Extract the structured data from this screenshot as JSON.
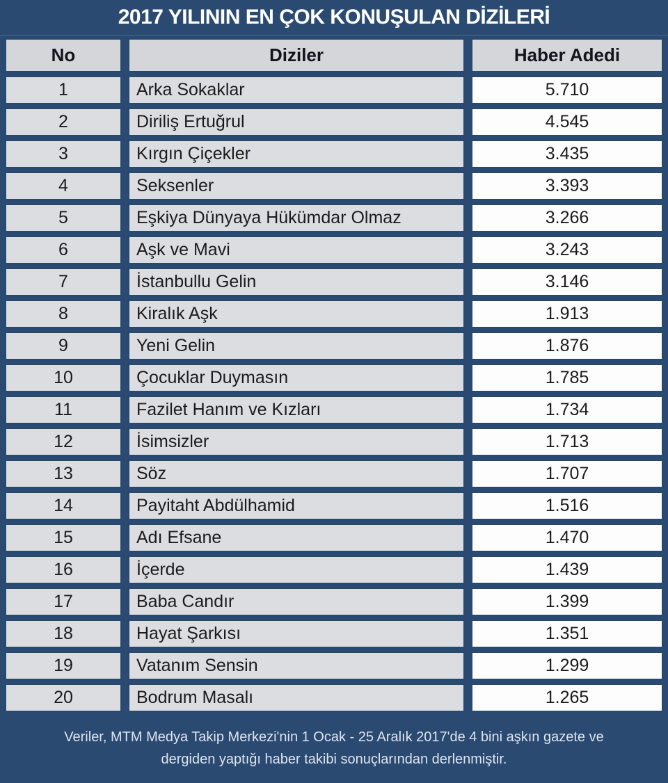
{
  "title": "2017 YILININ EN ÇOK KONUŞULAN DİZİLERİ",
  "chart_data": {
    "type": "table",
    "title": "2017 YILININ EN ÇOK KONUŞULAN DİZİLERİ",
    "columns": [
      "No",
      "Diziler",
      "Haber Adedi"
    ],
    "rows": [
      {
        "no": "1",
        "dizi": "Arka Sokaklar",
        "haber_adedi": "5.710"
      },
      {
        "no": "2",
        "dizi": "Diriliş Ertuğrul",
        "haber_adedi": "4.545"
      },
      {
        "no": "3",
        "dizi": "Kırgın Çiçekler",
        "haber_adedi": "3.435"
      },
      {
        "no": "4",
        "dizi": "Seksenler",
        "haber_adedi": "3.393"
      },
      {
        "no": "5",
        "dizi": "Eşkiya Dünyaya Hükümdar Olmaz",
        "haber_adedi": "3.266"
      },
      {
        "no": "6",
        "dizi": "Aşk ve Mavi",
        "haber_adedi": "3.243"
      },
      {
        "no": "7",
        "dizi": "İstanbullu Gelin",
        "haber_adedi": "3.146"
      },
      {
        "no": "8",
        "dizi": "Kiralık Aşk",
        "haber_adedi": "1.913"
      },
      {
        "no": "9",
        "dizi": "Yeni Gelin",
        "haber_adedi": "1.876"
      },
      {
        "no": "10",
        "dizi": "Çocuklar Duymasın",
        "haber_adedi": "1.785"
      },
      {
        "no": "11",
        "dizi": "Fazilet Hanım ve Kızları",
        "haber_adedi": "1.734"
      },
      {
        "no": "12",
        "dizi": "İsimsizler",
        "haber_adedi": "1.713"
      },
      {
        "no": "13",
        "dizi": "Söz",
        "haber_adedi": "1.707"
      },
      {
        "no": "14",
        "dizi": "Payitaht Abdülhamid",
        "haber_adedi": "1.516"
      },
      {
        "no": "15",
        "dizi": "Adı Efsane",
        "haber_adedi": "1.470"
      },
      {
        "no": "16",
        "dizi": "İçerde",
        "haber_adedi": "1.439"
      },
      {
        "no": "17",
        "dizi": "Baba Candır",
        "haber_adedi": "1.399"
      },
      {
        "no": "18",
        "dizi": "Hayat Şarkısı",
        "haber_adedi": "1.351"
      },
      {
        "no": "19",
        "dizi": "Vatanım Sensin",
        "haber_adedi": "1.299"
      },
      {
        "no": "20",
        "dizi": "Bodrum Masalı",
        "haber_adedi": "1.265"
      }
    ]
  },
  "footer": {
    "lines": [
      "Veriler, MTM Medya Takip Merkezi'nin 1 Ocak - 25 Aralık 2017'de 4 bini aşkın gazete ve",
      "dergiden yaptığı haber takibi sonuçlarından derlenmiştir."
    ]
  },
  "colors": {
    "background_navy": "#2b4a72",
    "cell_border": "#28496f",
    "header_cell_gray": "#d4d6d9",
    "data_cell_gray": "#dbdde0",
    "count_cell_white": "#fdfdfe",
    "title_text": "#ffffff",
    "data_text": "#1b1b1b",
    "footer_text": "#dde4ee"
  }
}
